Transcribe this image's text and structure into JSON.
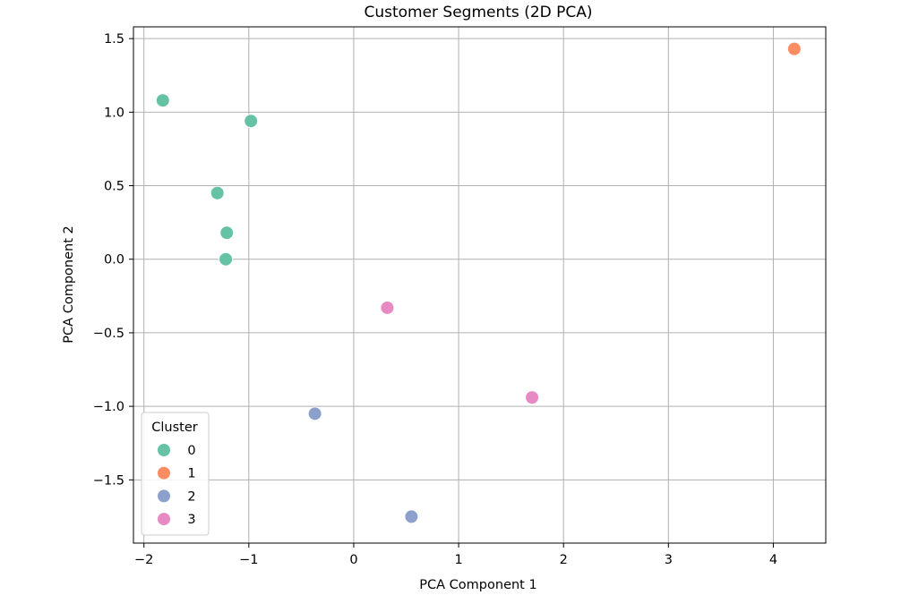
{
  "chart_data": {
    "type": "scatter",
    "title": "Customer Segments (2D PCA)",
    "xlabel": "PCA Component 1",
    "ylabel": "PCA Component 2",
    "xlim": [
      -2.1,
      4.5
    ],
    "ylim": [
      -1.93,
      1.58
    ],
    "xticks": [
      -2,
      -1,
      0,
      1,
      2,
      3,
      4
    ],
    "yticks": [
      -1.5,
      -1.0,
      -0.5,
      0.0,
      0.5,
      1.0,
      1.5
    ],
    "xtick_labels": [
      "−2",
      "−1",
      "0",
      "1",
      "2",
      "3",
      "4"
    ],
    "ytick_labels": [
      "−1.5",
      "−1.0",
      "−0.5",
      "0.0",
      "0.5",
      "1.0",
      "1.5"
    ],
    "grid": true,
    "legend": {
      "title": "Cluster",
      "placement": "lower-left"
    },
    "series": [
      {
        "name": "0",
        "color": "#66c2a5",
        "points": [
          [
            -1.82,
            1.08
          ],
          [
            -0.98,
            0.94
          ],
          [
            -1.3,
            0.45
          ],
          [
            -1.21,
            0.18
          ],
          [
            -1.22,
            0.0
          ]
        ]
      },
      {
        "name": "1",
        "color": "#fc8d62",
        "points": [
          [
            4.2,
            1.43
          ]
        ]
      },
      {
        "name": "2",
        "color": "#8da0cb",
        "points": [
          [
            -0.37,
            -1.05
          ],
          [
            0.55,
            -1.75
          ]
        ]
      },
      {
        "name": "3",
        "color": "#e78ac3",
        "points": [
          [
            0.32,
            -0.33
          ],
          [
            1.7,
            -0.94
          ]
        ]
      }
    ]
  }
}
